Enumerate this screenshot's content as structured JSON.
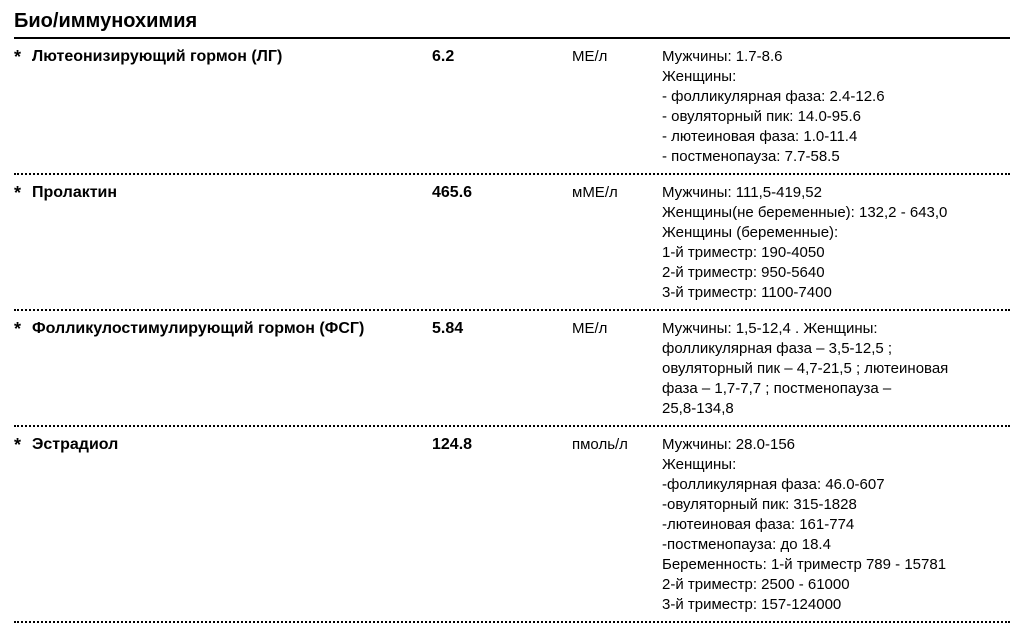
{
  "section_title": "Био/иммунохимия",
  "rows": [
    {
      "bullet": "*",
      "name": "Лютеонизирующий гормон (ЛГ)",
      "value": "6.2",
      "unit": "МЕ/л",
      "reference": [
        "Мужчины: 1.7-8.6",
        "Женщины:",
        "- фолликулярная фаза: 2.4-12.6",
        "- овуляторный пик: 14.0-95.6",
        "- лютеиновая фаза: 1.0-11.4",
        "- постменопауза: 7.7-58.5"
      ]
    },
    {
      "bullet": "*",
      "name": "Пролактин",
      "value": "465.6",
      "unit": "мМЕ/л",
      "reference": [
        "Мужчины: 111,5-419,52",
        "Женщины(не беременные): 132,2 - 643,0",
        "Женщины (беременные):",
        "1-й триместр: 190-4050",
        "2-й триместр: 950-5640",
        "3-й триместр: 1100-7400"
      ]
    },
    {
      "bullet": "*",
      "name": "Фолликулостимулирующий гормон (ФСГ)",
      "value": "5.84",
      "unit": "МЕ/л",
      "reference": [
        "Мужчины: 1,5-12,4 . Женщины:",
        "фолликулярная фаза – 3,5-12,5 ;",
        "овуляторный пик – 4,7-21,5 ; лютеиновая",
        "фаза – 1,7-7,7 ; постменопауза –",
        "25,8-134,8"
      ]
    },
    {
      "bullet": "*",
      "name": "Эстрадиол",
      "value": "124.8",
      "unit": "пмоль/л",
      "reference": [
        "Мужчины: 28.0-156",
        "Женщины:",
        "-фолликулярная фаза: 46.0-607",
        "-овуляторный пик: 315-1828",
        "-лютеиновая фаза: 161-774",
        "-постменопауза: до 18.4",
        "Беременность: 1-й триместр  789 - 15781",
        "2-й триместр: 2500 - 61000",
        "3-й триместр: 157-124000"
      ]
    }
  ]
}
